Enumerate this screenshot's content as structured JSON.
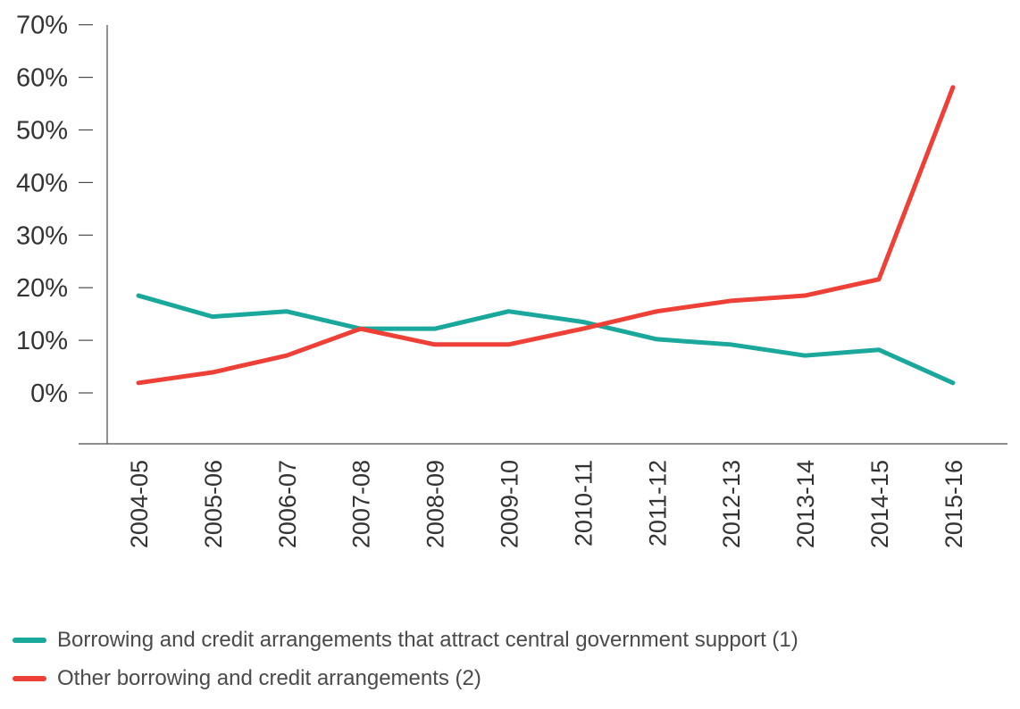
{
  "chart_data": {
    "type": "line",
    "categories": [
      "2004-05",
      "2005-06",
      "2006-07",
      "2007-08",
      "2008-09",
      "2009-10",
      "2010-11",
      "2011-12",
      "2012-13",
      "2013-14",
      "2014-15",
      "2015-16"
    ],
    "y_ticks": [
      "0%",
      "10%",
      "20%",
      "30%",
      "40%",
      "50%",
      "60%",
      "70%"
    ],
    "ylim": [
      -10,
      70
    ],
    "grid": false,
    "legend_position": "bottom",
    "series": [
      {
        "name": "Borrowing and credit arrangements that attract central government support (1)",
        "color": "#1aa79c",
        "values": [
          18.5,
          14.5,
          15.5,
          12.2,
          12.2,
          15.5,
          13.5,
          10.2,
          9.2,
          7.1,
          8.2,
          1.9
        ]
      },
      {
        "name": "Other borrowing and credit arrangements (2)",
        "color": "#ee4036",
        "values": [
          1.9,
          3.9,
          7.1,
          12.2,
          9.2,
          9.2,
          12.2,
          15.5,
          17.5,
          18.5,
          21.6,
          58.1
        ]
      }
    ]
  }
}
